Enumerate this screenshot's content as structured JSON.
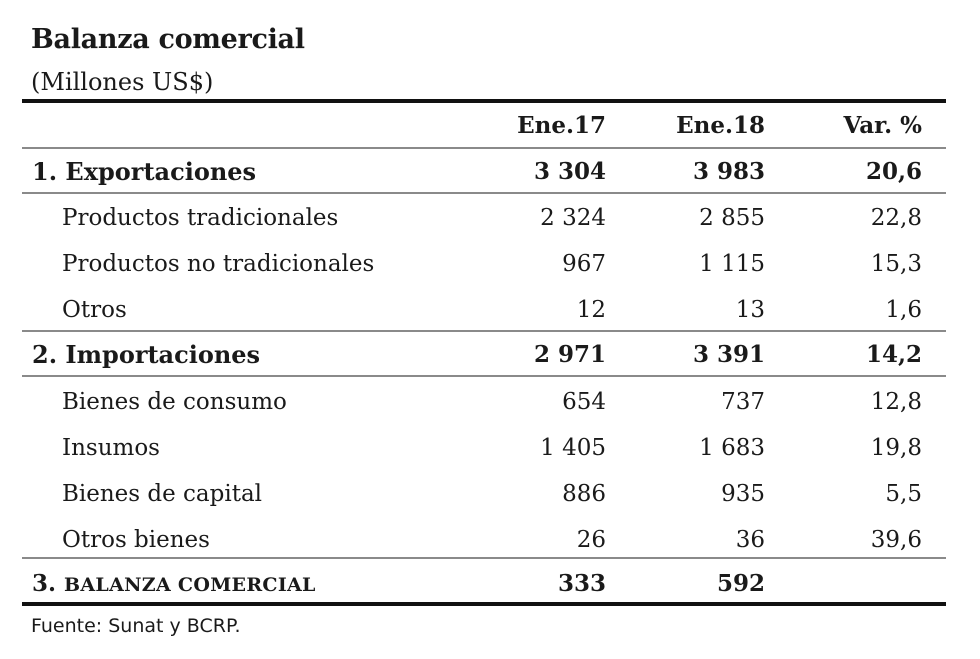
{
  "title": "Balanza comercial",
  "subtitle": "(Millones US$)",
  "columns": [
    "Ene.17",
    "Ene.18",
    "Var. %"
  ],
  "rows": [
    {
      "label": "1. Exportaciones",
      "v1": "3 304",
      "v2": "3 983",
      "v3": "20,6"
    },
    {
      "label": "Productos tradicionales",
      "v1": "2 324",
      "v2": "2 855",
      "v3": "22,8"
    },
    {
      "label": "Productos no tradicionales",
      "v1": "967",
      "v2": "1 115",
      "v3": "15,3"
    },
    {
      "label": "Otros",
      "v1": "12",
      "v2": "13",
      "v3": "1,6"
    },
    {
      "label": "2. Importaciones",
      "v1": "2 971",
      "v2": "3 391",
      "v3": "14,2"
    },
    {
      "label": "Bienes de consumo",
      "v1": "654",
      "v2": "737",
      "v3": "12,8"
    },
    {
      "label": "Insumos",
      "v1": "1 405",
      "v2": "1 683",
      "v3": "19,8"
    },
    {
      "label": "Bienes de capital",
      "v1": "886",
      "v2": "935",
      "v3": "5,5"
    },
    {
      "label": "Otros bienes",
      "v1": "26",
      "v2": "36",
      "v3": "39,6"
    }
  ],
  "total": {
    "number": "3.",
    "label": "BALANZA COMERCIAL",
    "v1": "333",
    "v2": "592",
    "v3": ""
  },
  "source": "Fuente: Sunat y BCRP."
}
